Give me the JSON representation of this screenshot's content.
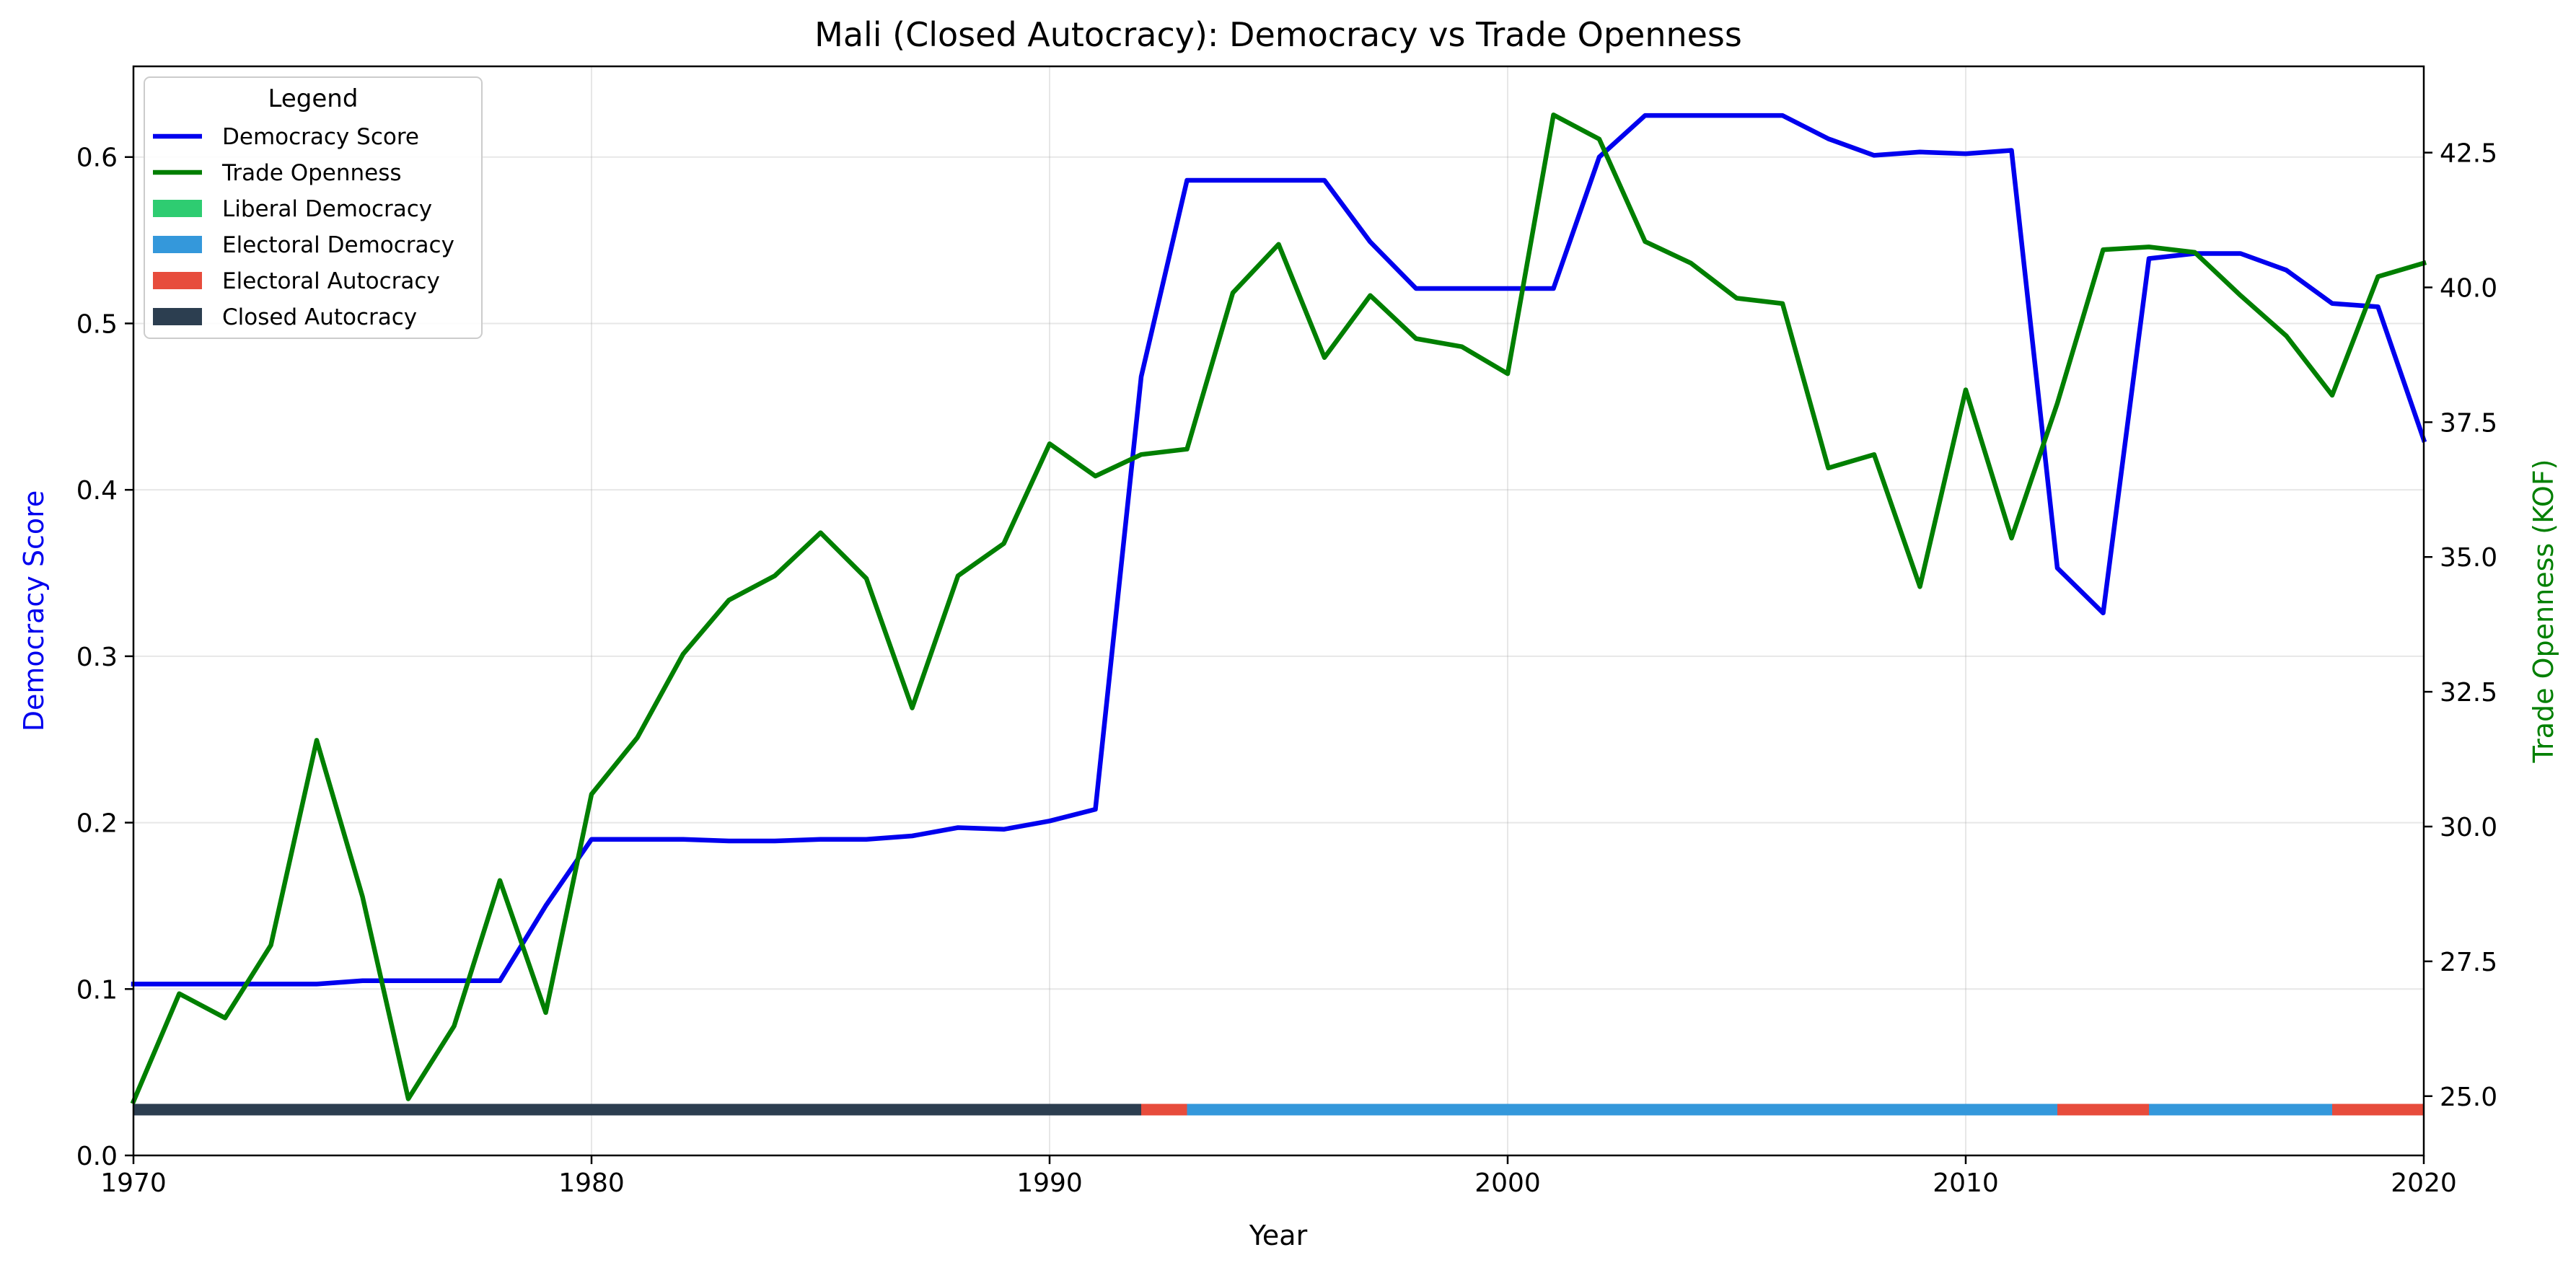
{
  "chart_data": {
    "type": "line",
    "title": "Mali (Closed Autocracy): Democracy vs Trade Openness",
    "xlabel": "Year",
    "ylabel_left": "Democracy Score",
    "ylabel_right": "Trade Openness (KOF)",
    "xlim": [
      1970,
      2020
    ],
    "ylim_left": [
      0.0,
      0.6545
    ],
    "ylim_right": [
      23.9,
      44.1
    ],
    "x_ticks": [
      1970,
      1980,
      1990,
      2000,
      2010,
      2020
    ],
    "y_ticks_left": [
      "0.0",
      "0.1",
      "0.2",
      "0.3",
      "0.4",
      "0.5",
      "0.6"
    ],
    "y_ticks_right": [
      "25.0",
      "27.5",
      "30.0",
      "32.5",
      "35.0",
      "37.5",
      "40.0",
      "42.5"
    ],
    "grid": true,
    "legend_title": "Legend",
    "legend_position": "top-left",
    "legend": [
      {
        "label": "Democracy Score",
        "kind": "line",
        "color": "#0000ee"
      },
      {
        "label": "Trade Openness",
        "kind": "line",
        "color": "#007f00"
      },
      {
        "label": "Liberal Democracy",
        "kind": "patch",
        "color": "#2ecc71"
      },
      {
        "label": "Electoral Democracy",
        "kind": "patch",
        "color": "#3498db"
      },
      {
        "label": "Electoral Autocracy",
        "kind": "patch",
        "color": "#e74c3c"
      },
      {
        "label": "Closed Autocracy",
        "kind": "patch",
        "color": "#2c3e50"
      }
    ],
    "x": [
      1970,
      1971,
      1972,
      1973,
      1974,
      1975,
      1976,
      1977,
      1978,
      1979,
      1980,
      1981,
      1982,
      1983,
      1984,
      1985,
      1986,
      1987,
      1988,
      1989,
      1990,
      1991,
      1992,
      1993,
      1994,
      1995,
      1996,
      1997,
      1998,
      1999,
      2000,
      2001,
      2002,
      2003,
      2004,
      2005,
      2006,
      2007,
      2008,
      2009,
      2010,
      2011,
      2012,
      2013,
      2014,
      2015,
      2016,
      2017,
      2018,
      2019,
      2020
    ],
    "series": [
      {
        "name": "Democracy Score",
        "axis": "left",
        "color": "#0000ee",
        "values": [
          0.103,
          0.103,
          0.103,
          0.103,
          0.103,
          0.105,
          0.105,
          0.105,
          0.105,
          0.15,
          0.19,
          0.19,
          0.19,
          0.189,
          0.189,
          0.19,
          0.19,
          0.192,
          0.197,
          0.196,
          0.201,
          0.208,
          0.468,
          0.586,
          0.586,
          0.586,
          0.586,
          0.549,
          0.521,
          0.521,
          0.521,
          0.521,
          0.6,
          0.625,
          0.625,
          0.625,
          0.625,
          0.611,
          0.601,
          0.603,
          0.602,
          0.604,
          0.353,
          0.326,
          0.539,
          0.542,
          0.542,
          0.532,
          0.512,
          0.51,
          0.43
        ]
      },
      {
        "name": "Trade Openness",
        "axis": "right",
        "color": "#007f00",
        "values": [
          24.9,
          26.9,
          26.45,
          27.8,
          31.6,
          28.7,
          24.95,
          26.3,
          29.0,
          26.55,
          30.6,
          31.65,
          33.2,
          34.2,
          34.65,
          35.45,
          34.6,
          32.2,
          34.65,
          35.25,
          37.1,
          36.5,
          36.9,
          37.0,
          39.9,
          40.8,
          38.7,
          39.85,
          39.05,
          38.9,
          38.4,
          43.2,
          42.75,
          40.85,
          40.45,
          39.8,
          39.7,
          36.65,
          36.9,
          34.45,
          38.1,
          35.35,
          37.85,
          40.7,
          40.75,
          40.65,
          39.85,
          39.1,
          38.0,
          40.2,
          40.45
        ]
      }
    ],
    "regime_bar": {
      "level": 0.0275,
      "segments": [
        {
          "start": 1970,
          "end": 1992,
          "regime": "Closed Autocracy",
          "color": "#2c3e50"
        },
        {
          "start": 1992,
          "end": 1993,
          "regime": "Electoral Autocracy",
          "color": "#e74c3c"
        },
        {
          "start": 1993,
          "end": 2012,
          "regime": "Electoral Democracy",
          "color": "#3498db"
        },
        {
          "start": 2012,
          "end": 2014,
          "regime": "Electoral Autocracy",
          "color": "#e74c3c"
        },
        {
          "start": 2014,
          "end": 2018,
          "regime": "Electoral Democracy",
          "color": "#3498db"
        },
        {
          "start": 2018,
          "end": 2020,
          "regime": "Electoral Autocracy",
          "color": "#e74c3c"
        }
      ]
    }
  }
}
